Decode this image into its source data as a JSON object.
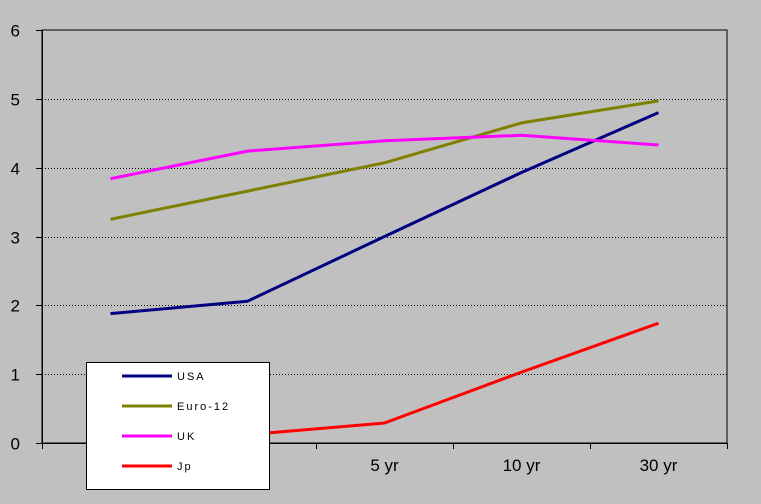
{
  "chart_data": {
    "type": "line",
    "title": "",
    "xlabel": "",
    "ylabel": "",
    "categories": [
      "",
      "",
      "5 yr",
      "10 yr",
      "30 yr"
    ],
    "ylim": [
      0,
      6
    ],
    "yticks": [
      "0",
      "1",
      "2",
      "3",
      "4",
      "5",
      "6"
    ],
    "grid": "horizontal dotted",
    "legend_position": "bottom-left",
    "series": [
      {
        "name": "USA",
        "color": "#000080",
        "values": [
          1.88,
          2.06,
          3.0,
          3.93,
          4.8
        ]
      },
      {
        "name": "Euro-12",
        "color": "#808000",
        "values": [
          3.25,
          3.66,
          4.07,
          4.65,
          4.97
        ]
      },
      {
        "name": "UK",
        "color": "#ff00ff",
        "values": [
          3.84,
          4.24,
          4.39,
          4.47,
          4.33
        ]
      },
      {
        "name": "Jp",
        "color": "#ff0000",
        "values": [
          0.05,
          0.12,
          0.29,
          1.03,
          1.74
        ]
      }
    ]
  }
}
